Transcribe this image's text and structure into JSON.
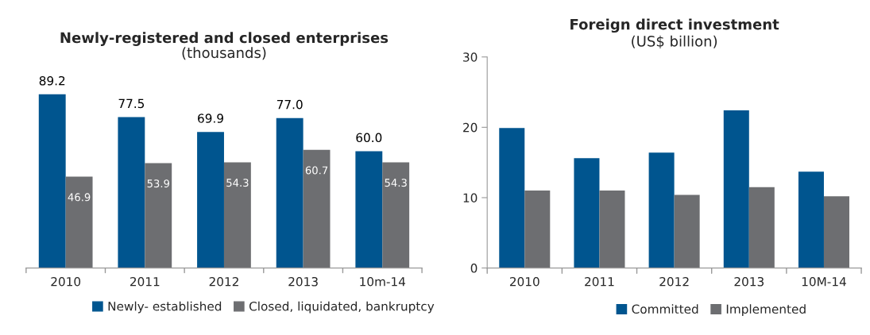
{
  "chart_data": [
    {
      "type": "bar",
      "title": "Newly-registered and closed enterprises",
      "subtitle": "(thousands)",
      "categories": [
        "2010",
        "2011",
        "2012",
        "2013",
        "10m-14"
      ],
      "series": [
        {
          "name": "Newly- established",
          "color": "#00558f",
          "values": [
            89.2,
            77.5,
            69.9,
            77.0,
            60.0
          ],
          "value_labels": [
            "89.2",
            "77.5",
            "69.9",
            "77.0",
            "60.0"
          ]
        },
        {
          "name": "Closed, liquidated, bankruptcy",
          "color": "#6d6e71",
          "values": [
            46.9,
            53.9,
            54.3,
            60.7,
            54.3
          ],
          "value_labels": [
            "46.9",
            "53.9",
            "54.3",
            "60.7",
            "54.3"
          ]
        }
      ],
      "legend": "bottom",
      "tick_labels": "x"
    },
    {
      "type": "bar",
      "title": "Foreign direct investment",
      "subtitle": "(US$ billion)",
      "categories": [
        "2010",
        "2011",
        "2012",
        "2013",
        "10M-14"
      ],
      "series": [
        {
          "name": "Committed",
          "color": "#00558f",
          "values": [
            19.9,
            15.6,
            16.4,
            22.4,
            13.7
          ]
        },
        {
          "name": "Implemented",
          "color": "#6d6e71",
          "values": [
            11.0,
            11.0,
            10.4,
            11.5,
            10.2
          ]
        }
      ],
      "ylim": [
        0,
        30
      ],
      "yticks": [
        0,
        10,
        20,
        30
      ],
      "legend": "bottom"
    }
  ]
}
